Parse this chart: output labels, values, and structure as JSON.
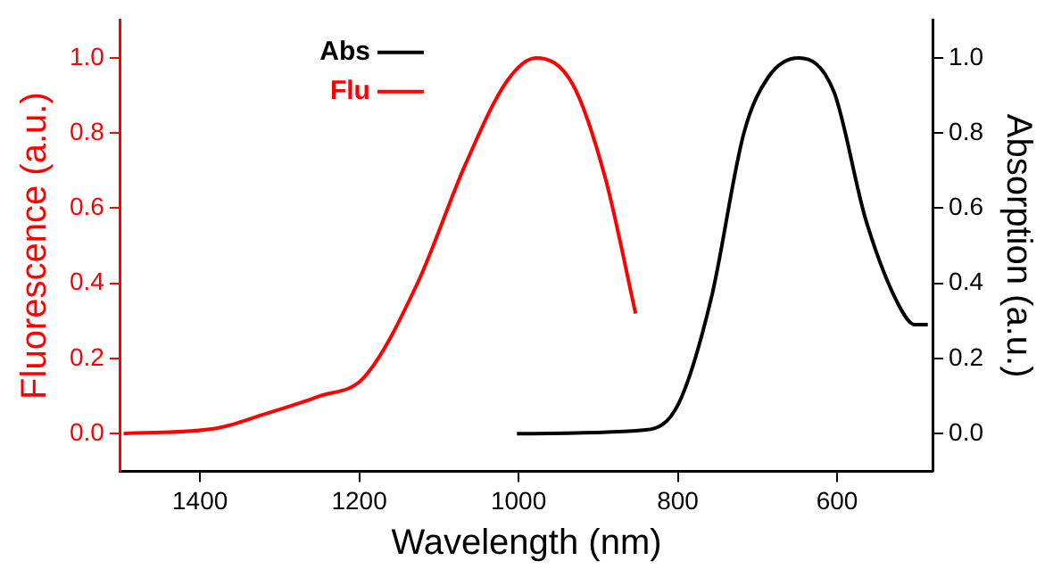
{
  "chart_data": {
    "type": "line",
    "xlabel": "Wavelength (nm)",
    "ylabel": "Fluorescence (a.u.)",
    "y2label": "Absorption (a.u.)",
    "xlim": [
      1500,
      480
    ],
    "xticks": [
      1400,
      1200,
      1000,
      800,
      600
    ],
    "ylim": [
      -0.1,
      1.1
    ],
    "yticks": [
      {
        "value": 0,
        "label": "0.0"
      },
      {
        "value": 0.2,
        "label": "0.2"
      },
      {
        "value": 0.4,
        "label": "0.4"
      },
      {
        "value": 0.6,
        "label": "0.6"
      },
      {
        "value": 0.8,
        "label": "0.8"
      },
      {
        "value": 1,
        "label": "1.0"
      }
    ],
    "y2lim": [
      -0.1,
      1.1
    ],
    "y2ticks": [
      {
        "value": 0,
        "label": "0.0"
      },
      {
        "value": 0.2,
        "label": "0.2"
      },
      {
        "value": 0.4,
        "label": "0.4"
      },
      {
        "value": 0.6,
        "label": "0.6"
      },
      {
        "value": 0.8,
        "label": "0.8"
      },
      {
        "value": 1,
        "label": "1.0"
      }
    ],
    "grid": false,
    "legend": "top left",
    "marker": "none",
    "line_style": "solid",
    "series": [
      {
        "name": "Abs",
        "color": "#000000",
        "axis": "y2",
        "x": [
          1002,
          840,
          799,
          758,
          717,
          686,
          648,
          604,
          564,
          522,
          502,
          486
        ],
        "values": [
          0,
          0.01,
          0.08,
          0.36,
          0.8,
          0.95,
          1.0,
          0.91,
          0.57,
          0.34,
          0.29,
          0.29
        ]
      },
      {
        "name": "Flu",
        "color": "#ff0000",
        "x": [
          1496,
          1378,
          1322,
          1250,
          1194,
          1127,
          1066,
          1014,
          978,
          932,
          891,
          853
        ],
        "values": [
          0,
          0.015,
          0.05,
          0.1,
          0.15,
          0.4,
          0.72,
          0.94,
          1.0,
          0.93,
          0.68,
          0.32
        ]
      }
    ]
  }
}
